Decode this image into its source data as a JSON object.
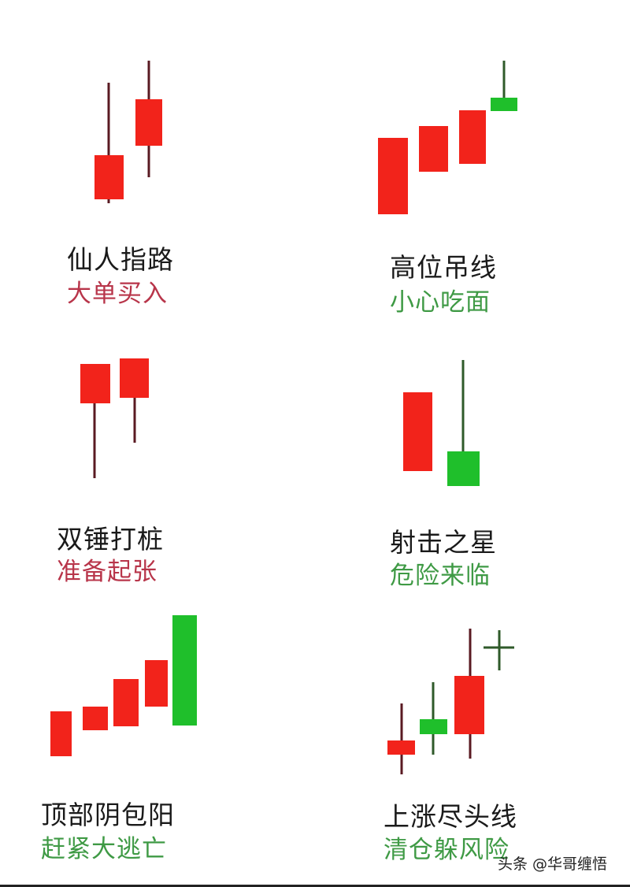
{
  "colors": {
    "bullish": "#f2231b",
    "bearish": "#1fbf2b",
    "warning_text": "#b8354a",
    "danger_text": "#3f9a45"
  },
  "patterns": [
    {
      "title": "仙人指路",
      "subtitle": "大单买入",
      "subtitle_color": "red",
      "candles": [
        "up",
        "up"
      ]
    },
    {
      "title": "高位吊线",
      "subtitle": "小心吃面",
      "subtitle_color": "green",
      "candles": [
        "up",
        "up",
        "up",
        "down"
      ]
    },
    {
      "title": "双锤打桩",
      "subtitle": "准备起张",
      "subtitle_color": "red",
      "candles": [
        "up",
        "up"
      ]
    },
    {
      "title": "射击之星",
      "subtitle": "危险来临",
      "subtitle_color": "green",
      "candles": [
        "up",
        "down"
      ]
    },
    {
      "title": "顶部阴包阳",
      "subtitle": "赶紧大逃亡",
      "subtitle_color": "green",
      "candles": [
        "up",
        "up",
        "up",
        "up",
        "down"
      ]
    },
    {
      "title": "上涨尽头线",
      "subtitle": "清仓躲风险",
      "subtitle_color": "green",
      "candles": [
        "up",
        "down",
        "up",
        "doji"
      ]
    }
  ],
  "watermark": "头条 @华哥缠悟"
}
